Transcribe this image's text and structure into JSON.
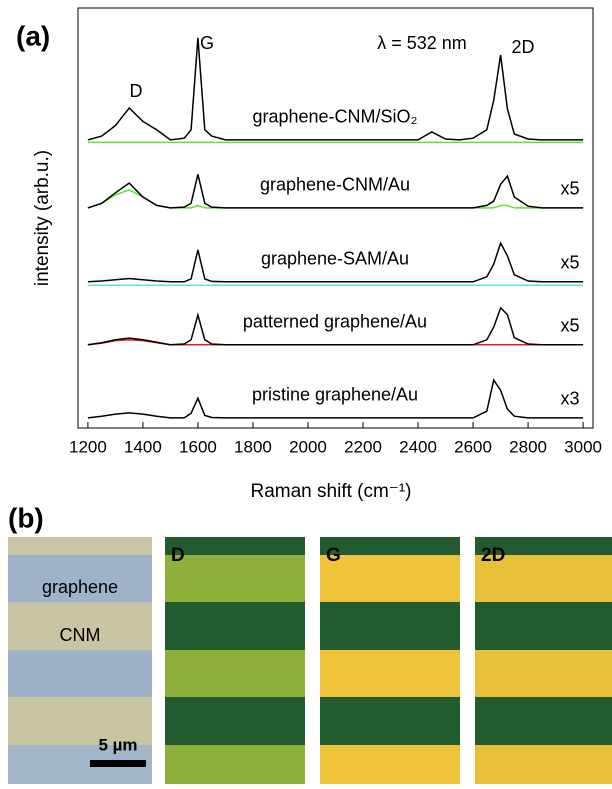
{
  "chart_data": {
    "type": "line",
    "label": "(a)",
    "xlabel": "Raman shift (cm⁻¹)",
    "ylabel": "intensity (arb.u.)",
    "annotations": [
      "D",
      "G",
      "2D",
      "λ = 532 nm"
    ],
    "xlim": [
      1164,
      3036
    ],
    "ylim": [
      0,
      100
    ],
    "xticks": [
      1200,
      1400,
      1600,
      1800,
      2000,
      2200,
      2400,
      2600,
      2800,
      3000
    ],
    "x": [
      1200,
      1250,
      1300,
      1350,
      1400,
      1450,
      1500,
      1550,
      1575,
      1600,
      1625,
      1650,
      1700,
      1750,
      1800,
      1850,
      1900,
      1950,
      2000,
      2050,
      2100,
      2150,
      2200,
      2250,
      2300,
      2350,
      2400,
      2450,
      2500,
      2550,
      2600,
      2650,
      2675,
      2700,
      2725,
      2750,
      2800,
      2850,
      2900,
      2950,
      3000
    ],
    "series": [
      {
        "color": "#66dd33",
        "values": [
          68,
          68,
          68,
          68,
          68,
          68,
          68,
          68,
          68,
          68,
          68,
          68,
          68,
          68,
          68,
          68,
          68,
          68,
          68,
          68,
          68,
          68,
          68,
          68,
          68,
          68,
          68,
          68,
          68,
          68,
          68,
          68,
          68,
          68,
          68,
          68,
          68,
          68,
          68,
          68,
          68
        ]
      },
      {
        "name": "graphene-CNM/SiO₂",
        "color": "#000000",
        "values": [
          68.6,
          69.5,
          72,
          76.2,
          73,
          71,
          68.6,
          69,
          71,
          92.9,
          71,
          69.5,
          68.6,
          68.6,
          68.6,
          68.6,
          68.6,
          68.6,
          68.6,
          68.6,
          68.6,
          68.6,
          68.6,
          68.6,
          68.6,
          68.6,
          68.6,
          70.5,
          68.8,
          68.6,
          69,
          71,
          78,
          88.8,
          76,
          70,
          68.8,
          68.6,
          68.6,
          68.6,
          68.6
        ]
      },
      {
        "color": "#66dd33",
        "values": [
          52.4,
          53.5,
          55.5,
          56.7,
          55,
          53,
          52.4,
          52.4,
          52.4,
          53,
          52.4,
          52.4,
          52.4,
          52.4,
          52.4,
          52.4,
          52.4,
          52.4,
          52.4,
          52.4,
          52.4,
          52.4,
          52.4,
          52.4,
          52.4,
          52.4,
          52.4,
          52.4,
          52.4,
          52.4,
          52.4,
          52.4,
          52.4,
          53,
          53,
          52.4,
          52.4,
          52.4,
          52.4,
          52.4,
          52.4
        ]
      },
      {
        "name": "graphene-CNM/Au",
        "scale_label": "x5",
        "color": "#000000",
        "values": [
          52.4,
          53.5,
          56,
          58.3,
          55,
          53,
          52.4,
          52.6,
          53.5,
          60.4,
          53.5,
          52.6,
          52.4,
          52.4,
          52.4,
          52.4,
          52.4,
          52.4,
          52.4,
          52.4,
          52.4,
          52.4,
          52.4,
          52.4,
          52.4,
          52.4,
          52.4,
          52.4,
          52.4,
          52.4,
          52.4,
          53,
          54,
          58,
          60,
          55,
          52.8,
          52.4,
          52.4,
          52.4,
          52.4
        ]
      },
      {
        "color": "#66dddd",
        "values": [
          34,
          34,
          34,
          34,
          34,
          34,
          34,
          34,
          34,
          34,
          34,
          34,
          34,
          34,
          34,
          34,
          34,
          34,
          34,
          34,
          34,
          34,
          34,
          34,
          34,
          34,
          34,
          34,
          34,
          34,
          34,
          34,
          34,
          34,
          34,
          34,
          34,
          34,
          34,
          34,
          34
        ]
      },
      {
        "name": "graphene-SAM/Au",
        "scale_label": "x5",
        "color": "#000000",
        "values": [
          34.8,
          35,
          35.3,
          35.6,
          35.3,
          35,
          34.8,
          34.8,
          35.5,
          42.4,
          35.5,
          34.9,
          34.8,
          34.8,
          34.8,
          34.8,
          34.8,
          34.8,
          34.8,
          34.8,
          34.8,
          34.8,
          34.8,
          34.8,
          34.8,
          34.8,
          34.8,
          34.8,
          34.8,
          34.8,
          34.8,
          36,
          39,
          44,
          41,
          36.5,
          35,
          34.8,
          34.8,
          34.8,
          34.8
        ]
      },
      {
        "color": "#dd2222",
        "values": [
          19.8,
          20.2,
          20.8,
          21,
          20.8,
          20.3,
          19.8,
          19.8,
          19.8,
          19.8,
          19.8,
          19.8,
          19.8,
          19.8,
          19.8,
          19.8,
          19.8,
          19.8,
          19.8,
          19.8,
          19.8,
          19.8,
          19.8,
          19.8,
          19.8,
          19.8,
          19.8,
          19.8,
          19.8,
          19.8,
          19.8,
          19.8,
          19.8,
          19.8,
          19.8,
          19.8,
          19.8,
          19.8,
          19.8,
          19.8,
          19.8
        ]
      },
      {
        "name": "patterned graphene/Au",
        "scale_label": "x5",
        "color": "#000000",
        "values": [
          19.8,
          20.3,
          21,
          21.4,
          21,
          20.4,
          19.8,
          20,
          21,
          26.9,
          21,
          20,
          19.8,
          19.8,
          19.8,
          19.8,
          19.8,
          19.8,
          19.8,
          19.8,
          19.8,
          19.8,
          19.8,
          19.8,
          19.8,
          19.8,
          19.8,
          19.8,
          19.8,
          19.8,
          19.8,
          21,
          24,
          28.6,
          27,
          21.5,
          20,
          19.8,
          19.8,
          19.8,
          19.8
        ]
      },
      {
        "name": "pristine graphene/Au",
        "scale_label": "x3",
        "color": "#000000",
        "values": [
          2.4,
          2.8,
          3.3,
          3.6,
          3.3,
          2.8,
          2.4,
          2.4,
          3.5,
          7.1,
          3,
          2.5,
          2.4,
          2.4,
          2.4,
          2.4,
          2.4,
          2.4,
          2.4,
          2.4,
          2.4,
          2.4,
          2.4,
          2.4,
          2.4,
          2.4,
          2.4,
          2.4,
          2.4,
          2.4,
          2.4,
          4,
          11.4,
          9,
          4.5,
          2.8,
          2.4,
          2.4,
          2.4,
          2.4,
          2.4
        ]
      }
    ]
  },
  "panel_b": {
    "label": "(b)",
    "photo_labels": [
      "graphene",
      "CNM"
    ],
    "scale_bar": "5 µm",
    "maps": [
      "D",
      "G",
      "2D"
    ]
  }
}
